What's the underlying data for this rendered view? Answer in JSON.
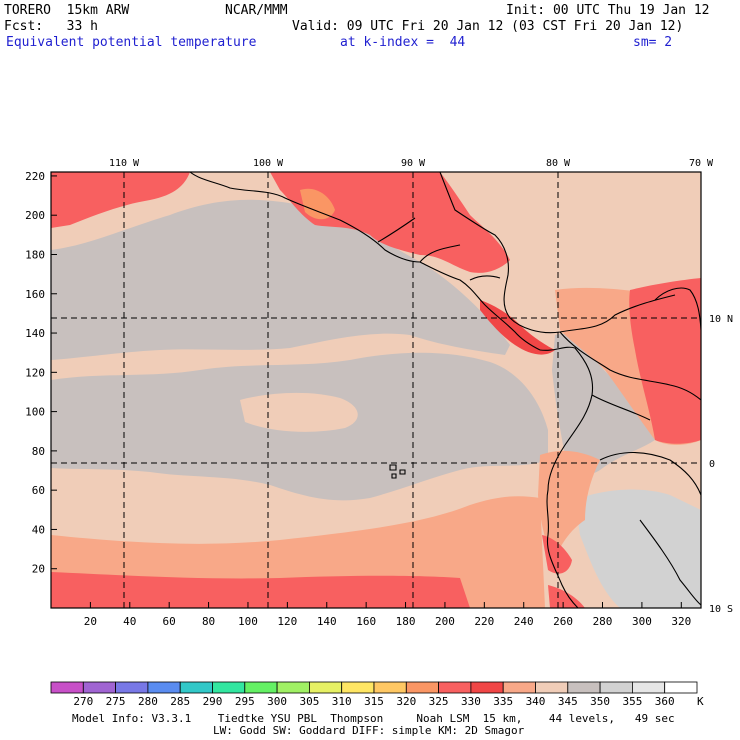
{
  "header": {
    "model": "TORERO  15km ARW",
    "org": "NCAR/MMM",
    "init": "Init: 00 UTC Thu 19 Jan 12",
    "fcst": "Fcst:   33 h",
    "valid": "Valid: 09 UTC Fri 20 Jan 12 (03 CST Fri 20 Jan 12)",
    "field": "Equivalent potential temperature",
    "level": "at k-index =  44",
    "smooth": "sm= 2"
  },
  "axes": {
    "lon_labels": [
      "110 W",
      "100 W",
      "90 W",
      "80 W",
      "70 W"
    ],
    "lat_labels": [
      "10 N",
      "0",
      "10 S"
    ],
    "x_ticks": [
      "20",
      "40",
      "60",
      "80",
      "100",
      "120",
      "140",
      "160",
      "180",
      "200",
      "220",
      "240",
      "260",
      "280",
      "300",
      "320"
    ],
    "y_ticks": [
      "20",
      "40",
      "60",
      "80",
      "100",
      "120",
      "140",
      "160",
      "180",
      "200",
      "220"
    ]
  },
  "colorbar": {
    "unit": "K",
    "labels": [
      "270",
      "275",
      "280",
      "285",
      "290",
      "295",
      "300",
      "305",
      "310",
      "315",
      "320",
      "325",
      "330",
      "335",
      "340",
      "345",
      "350",
      "355",
      "360"
    ],
    "colors": [
      "#c850c8",
      "#a064d2",
      "#7878e6",
      "#5a8cf0",
      "#32c8c8",
      "#32e6a0",
      "#64f064",
      "#a0f064",
      "#e6f064",
      "#ffe664",
      "#ffc864",
      "#fa9664",
      "#f86060",
      "#f04646",
      "#f8a888",
      "#f0cdb8",
      "#c8c0be",
      "#d2d2d2",
      "#e6e6e6",
      "#ffffff"
    ]
  },
  "footer": {
    "line1": "Model Info: V3.3.1    Tiedtke YSU PBL  Thompson     Noah LSM  15 km,    44 levels,   49 sec",
    "line2": "LW: Godd SW: Goddard DIFF: simple KM: 2D Smagor"
  },
  "map_colors": {
    "base": "#f0cdb8",
    "gray": "#c8c0be",
    "gray_light": "#d2d2d2",
    "salmon": "#f8a888",
    "red": "#f86060",
    "red_dark": "#f04646",
    "orange": "#fa9664"
  }
}
